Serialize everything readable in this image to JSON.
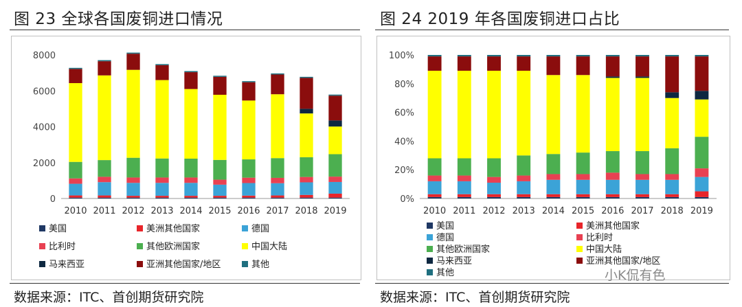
{
  "left": {
    "title": "图 23 全球各国废铜进口情况",
    "source": "数据来源：ITC、首创期货研究院"
  },
  "right": {
    "title": "图 24 2019 年各国废铜进口占比",
    "source": "数据来源：ITC、首创期货研究院"
  },
  "watermark": "小K侃有色",
  "chart_data": [
    {
      "type": "bar",
      "stacked": true,
      "categories": [
        "2010",
        "2011",
        "2012",
        "2013",
        "2014",
        "2015",
        "2016",
        "2017",
        "2018",
        "2019"
      ],
      "ylim": [
        0,
        8000
      ],
      "yticks": [
        "0",
        "2000",
        "4000",
        "6000",
        "8000"
      ],
      "legend_position": "bottom",
      "series": [
        {
          "name": "美国",
          "color": "#1f3864",
          "values": [
            50,
            50,
            50,
            50,
            50,
            50,
            50,
            50,
            50,
            50
          ]
        },
        {
          "name": "美洲其他国家",
          "color": "#e8252a",
          "values": [
            120,
            120,
            100,
            100,
            100,
            100,
            110,
            120,
            150,
            220
          ]
        },
        {
          "name": "德国",
          "color": "#3ba3d7",
          "values": [
            650,
            740,
            720,
            720,
            720,
            620,
            700,
            680,
            700,
            650
          ]
        },
        {
          "name": "比利时",
          "color": "#e84152",
          "values": [
            300,
            300,
            300,
            300,
            300,
            280,
            300,
            300,
            300,
            300
          ]
        },
        {
          "name": "其他欧洲国家",
          "color": "#4caf50",
          "values": [
            920,
            930,
            1100,
            1060,
            1050,
            1100,
            1020,
            1100,
            1100,
            1250
          ]
        },
        {
          "name": "中国大陆",
          "color": "#ffff00",
          "values": [
            4390,
            4720,
            4900,
            4370,
            3880,
            3630,
            3280,
            3560,
            2440,
            1540
          ]
        },
        {
          "name": "马来西亚",
          "color": "#0e2841",
          "values": [
            0,
            0,
            0,
            0,
            0,
            0,
            0,
            0,
            260,
            340
          ]
        },
        {
          "name": "亚洲其他国家/地区",
          "color": "#8b0d0d",
          "values": [
            790,
            790,
            900,
            830,
            940,
            1000,
            1020,
            1100,
            1720,
            1380
          ]
        },
        {
          "name": "其他",
          "color": "#1f6f7f",
          "values": [
            60,
            60,
            60,
            60,
            60,
            60,
            60,
            60,
            60,
            60
          ]
        }
      ]
    },
    {
      "type": "bar",
      "stacked": true,
      "percent": true,
      "categories": [
        "2010",
        "2011",
        "2012",
        "2013",
        "2014",
        "2015",
        "2016",
        "2017",
        "2018",
        "2019"
      ],
      "ylim": [
        0,
        100
      ],
      "yticks": [
        "0%",
        "20%",
        "40%",
        "60%",
        "80%",
        "100%"
      ],
      "legend_position": "bottom",
      "series": [
        {
          "name": "美国",
          "color": "#1f3864",
          "values": [
            1,
            1,
            1,
            1,
            1,
            1,
            1,
            1,
            1,
            1
          ]
        },
        {
          "name": "美洲其他国家",
          "color": "#e8252a",
          "values": [
            2,
            2,
            2,
            2,
            2,
            2,
            2,
            2,
            2,
            4
          ]
        },
        {
          "name": "德国",
          "color": "#3ba3d7",
          "values": [
            9,
            9,
            8,
            9,
            10,
            10,
            10,
            10,
            10,
            10
          ]
        },
        {
          "name": "比利时",
          "color": "#e84152",
          "values": [
            4,
            4,
            4,
            4,
            4,
            4,
            5,
            4,
            4,
            6
          ]
        },
        {
          "name": "其他欧洲国家",
          "color": "#4caf50",
          "values": [
            12,
            12,
            13,
            14,
            14,
            15,
            15,
            16,
            18,
            22
          ]
        },
        {
          "name": "中国大陆",
          "color": "#ffff00",
          "values": [
            61,
            61,
            61,
            59,
            55,
            54,
            51,
            51,
            35,
            26
          ]
        },
        {
          "name": "马来西亚",
          "color": "#0e2841",
          "values": [
            0,
            0,
            0,
            0,
            0,
            0,
            1,
            1,
            4,
            6
          ]
        },
        {
          "name": "亚洲其他国家/地区",
          "color": "#8b0d0d",
          "values": [
            10,
            10,
            10,
            10,
            13,
            13,
            14,
            14,
            25,
            24
          ]
        },
        {
          "name": "其他",
          "color": "#1f6f7f",
          "values": [
            1,
            1,
            1,
            1,
            1,
            1,
            1,
            1,
            1,
            1
          ]
        }
      ]
    }
  ]
}
